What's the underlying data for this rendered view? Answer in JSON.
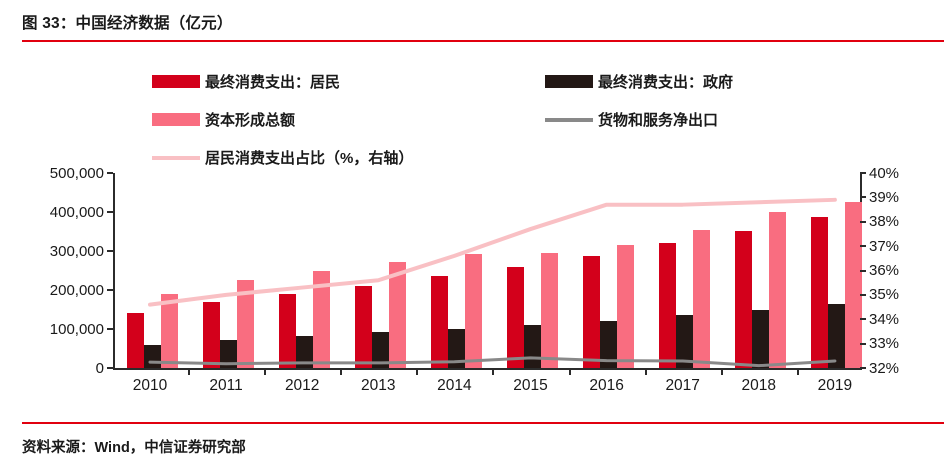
{
  "figure": {
    "title": "图 33：中国经济数据（亿元）",
    "source": "资料来源：Wind，中信证券研究部",
    "accent_color": "#e1000f"
  },
  "chart_data": {
    "type": "bar+line combo",
    "categories": [
      "2010",
      "2011",
      "2012",
      "2013",
      "2014",
      "2015",
      "2016",
      "2017",
      "2018",
      "2019"
    ],
    "series": [
      {
        "id": "resident-consumption",
        "name": "最终消费支出：居民",
        "type": "bar",
        "axis": "left",
        "color": "#d3001b",
        "values": [
          140000,
          168000,
          190000,
          210000,
          235000,
          258000,
          287000,
          320000,
          352000,
          386000
        ]
      },
      {
        "id": "government-consumption",
        "name": "最终消费支出：政府",
        "type": "bar",
        "axis": "left",
        "color": "#231815",
        "values": [
          58000,
          72000,
          82000,
          92000,
          100000,
          110000,
          120000,
          135000,
          150000,
          165000
        ]
      },
      {
        "id": "capital-formation",
        "name": "资本形成总额",
        "type": "bar",
        "axis": "left",
        "color": "#f96d80",
        "values": [
          190000,
          225000,
          248000,
          272000,
          292000,
          295000,
          315000,
          355000,
          400000,
          425000
        ]
      },
      {
        "id": "net-exports",
        "name": "货物和服务净出口",
        "type": "line",
        "axis": "left",
        "color": "#898989",
        "stroke_width": 3,
        "values": [
          15000,
          11000,
          13000,
          13000,
          16000,
          26000,
          19000,
          18000,
          6000,
          18000
        ]
      },
      {
        "id": "resident-share",
        "name": "居民消费支出占比（%，右轴）",
        "type": "line",
        "axis": "right",
        "color": "#f9c0c4",
        "stroke_width": 4,
        "values": [
          34.6,
          35.0,
          35.3,
          35.6,
          36.6,
          37.7,
          38.7,
          38.7,
          38.8,
          38.9
        ]
      }
    ],
    "left_axis": {
      "min": 0,
      "max": 500000,
      "tick_labels": [
        "0",
        "100,000",
        "200,000",
        "300,000",
        "400,000",
        "500,000"
      ]
    },
    "right_axis": {
      "min": 32,
      "max": 40,
      "tick_labels": [
        "32%",
        "33%",
        "34%",
        "35%",
        "36%",
        "37%",
        "38%",
        "39%",
        "40%"
      ]
    },
    "grid": false,
    "legend_position": "top"
  }
}
